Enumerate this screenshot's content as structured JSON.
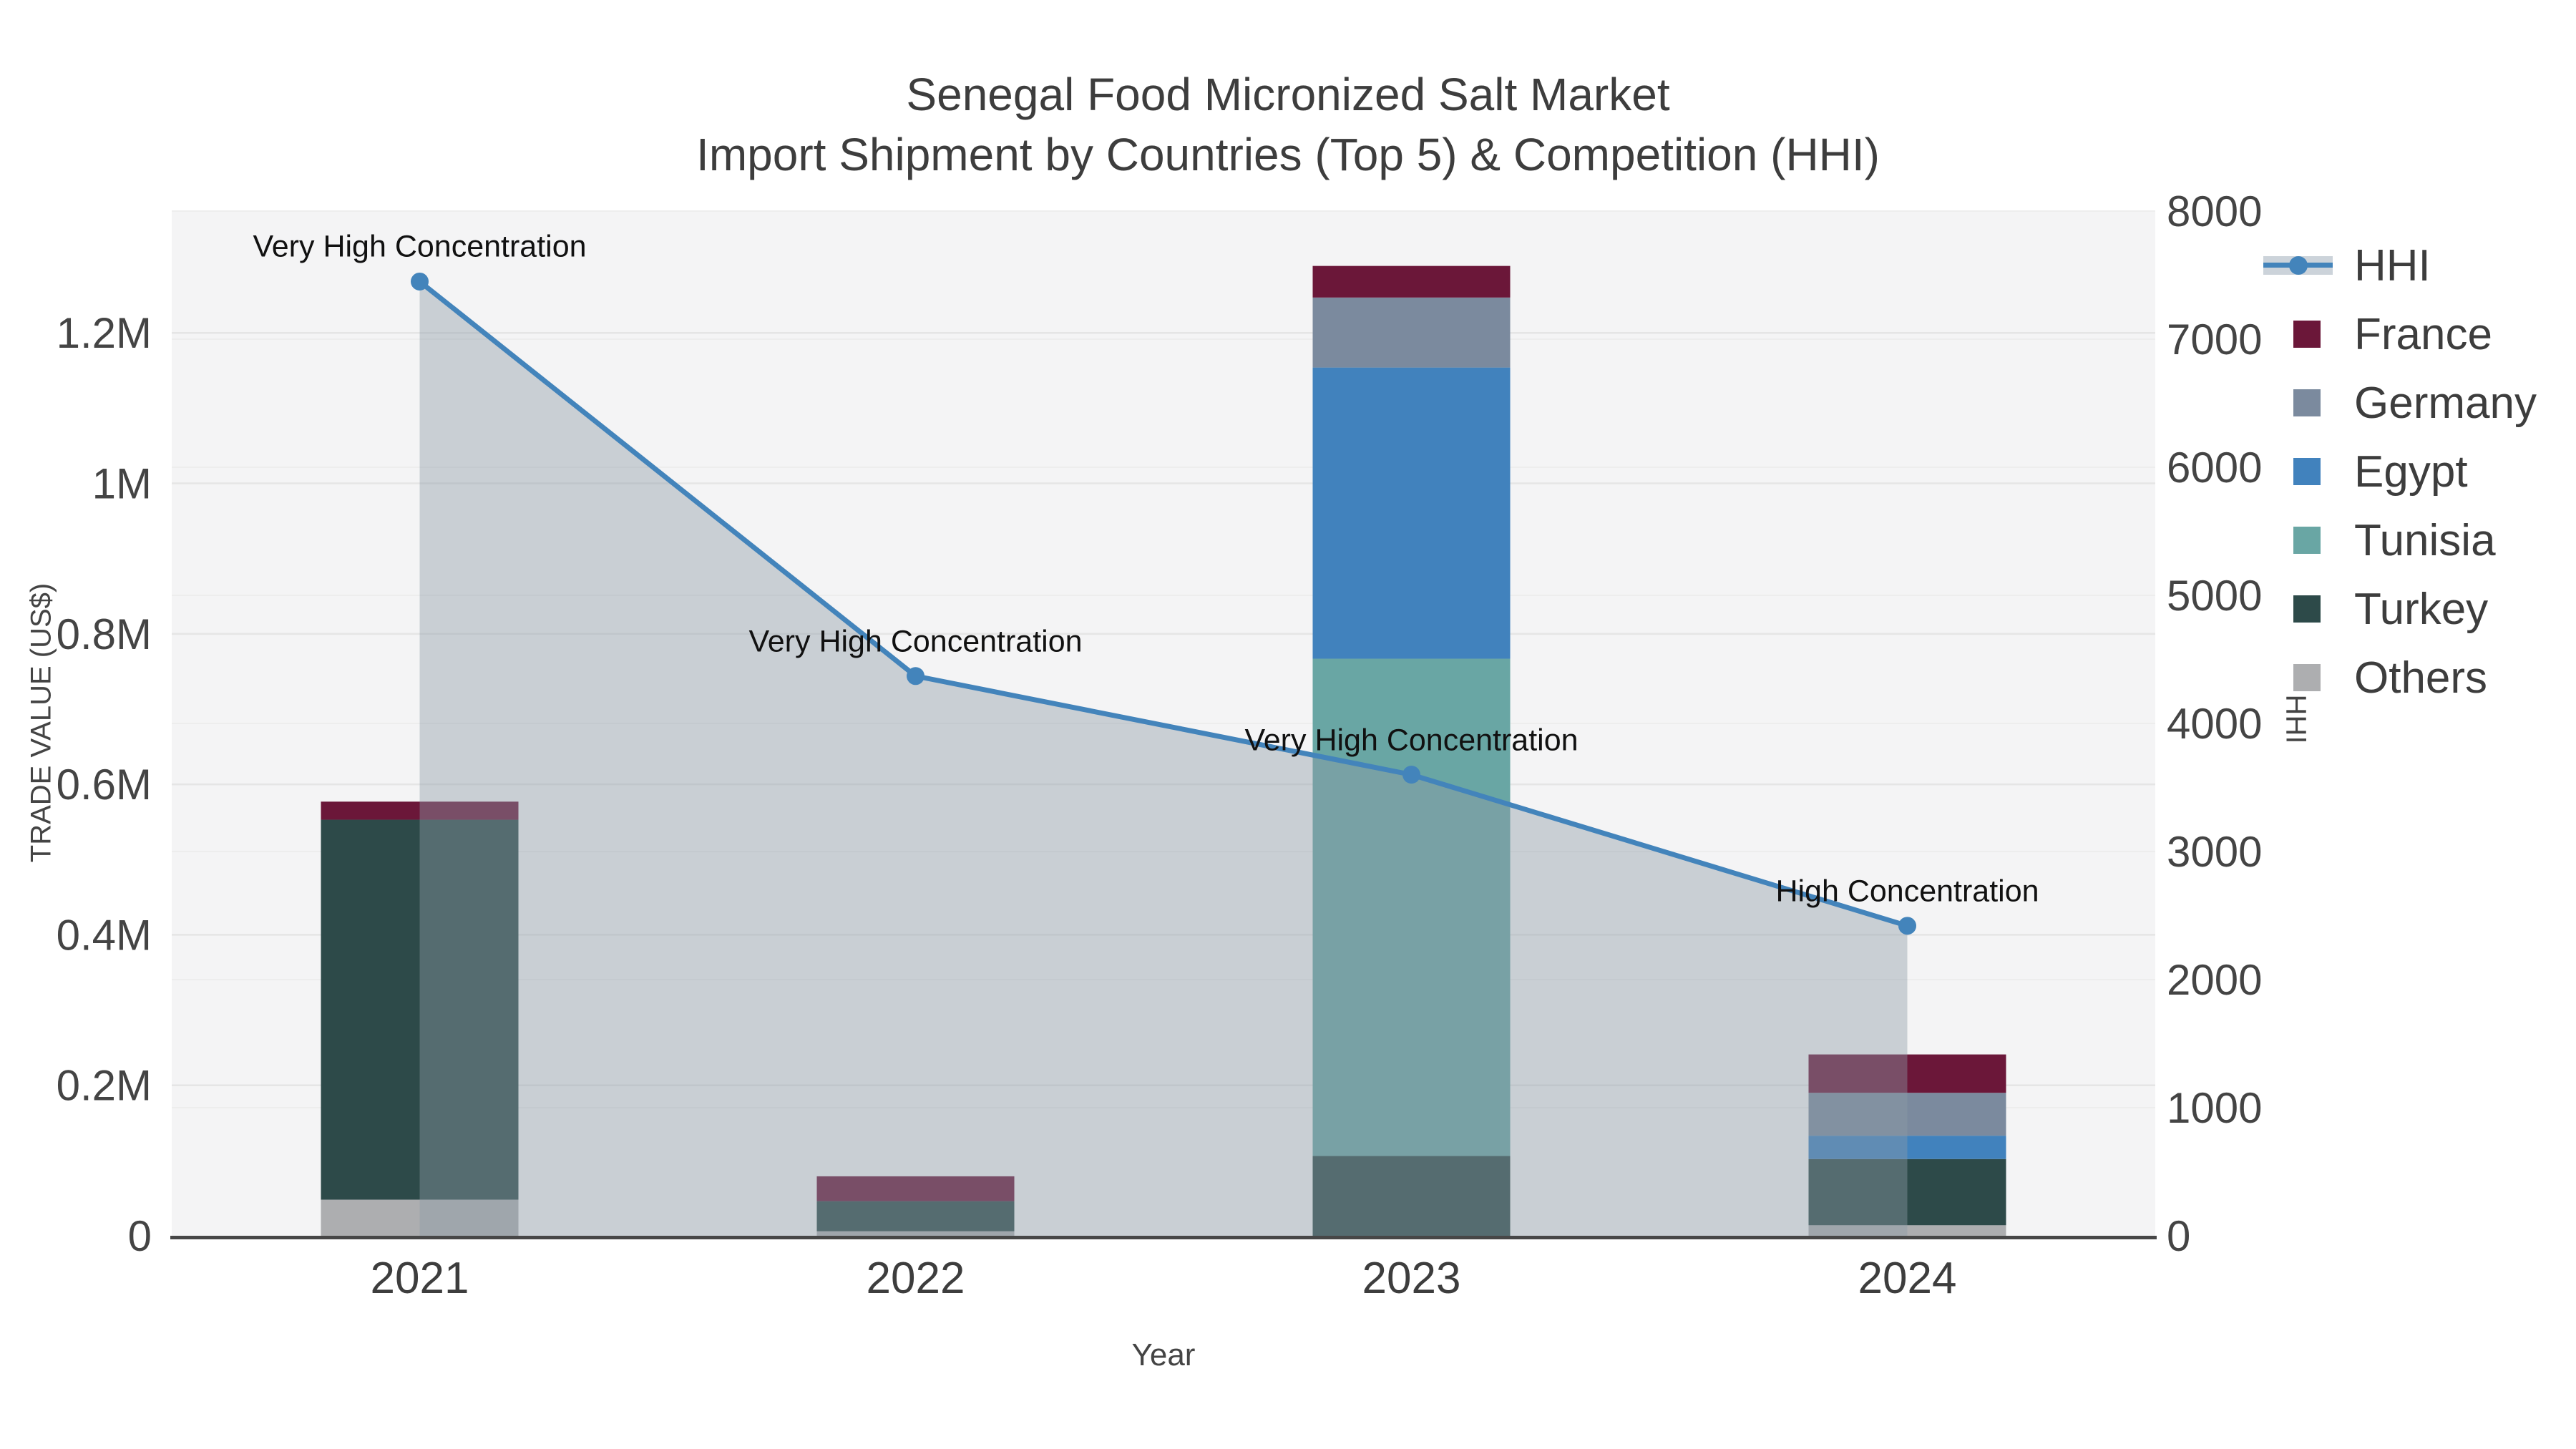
{
  "title": {
    "line1": "Senegal Food Micronized Salt Market",
    "line2": "Import Shipment by Countries (Top 5) & Competition (HHI)"
  },
  "chart_data": {
    "type": "bar+line",
    "subtype": "stacked bars (left axis) with HHI line and area fill to zero (right axis)",
    "categories": [
      "2021",
      "2022",
      "2023",
      "2024"
    ],
    "bar_unit": "US$",
    "series": [
      {
        "name": "France",
        "color": "#6b1739",
        "values": [
          24000,
          33000,
          42000,
          51000
        ]
      },
      {
        "name": "Germany",
        "color": "#7b8a9e",
        "values": [
          0,
          0,
          93000,
          57000
        ]
      },
      {
        "name": "Egypt",
        "color": "#4182bd",
        "values": [
          0,
          0,
          387000,
          31000
        ]
      },
      {
        "name": "Tunisia",
        "color": "#69a6a4",
        "values": [
          0,
          0,
          661000,
          0
        ]
      },
      {
        "name": "Turkey",
        "color": "#2d4a49",
        "values": [
          505000,
          40000,
          106000,
          88000
        ]
      },
      {
        "name": "Others",
        "color": "#adaeb0",
        "values": [
          48000,
          6000,
          0,
          14000
        ]
      }
    ],
    "stack_order_bottom_to_top": [
      "Others",
      "Turkey",
      "Tunisia",
      "Egypt",
      "Germany",
      "France"
    ],
    "line_series": {
      "name": "HHI",
      "color": "#4384bb",
      "area_fill": "rgba(141,154,168,0.42)",
      "values": [
        7450,
        4370,
        3600,
        2420
      ]
    },
    "annotations": [
      {
        "category": "2021",
        "text": "Very High Concentration"
      },
      {
        "category": "2022",
        "text": "Very High Concentration"
      },
      {
        "category": "2023",
        "text": "Very High Concentration"
      },
      {
        "category": "2024",
        "text": "High Concentration"
      }
    ],
    "left_axis": {
      "title": "TRADE VALUE (US$)",
      "tick_values": [
        0,
        200000,
        400000,
        600000,
        800000,
        1000000,
        1200000
      ],
      "tick_labels": [
        "0",
        "0.2M",
        "0.4M",
        "0.6M",
        "0.8M",
        "1M",
        "1.2M"
      ],
      "range": [
        0,
        1361900
      ]
    },
    "right_axis": {
      "title": "HHI",
      "tick_values": [
        0,
        1000,
        2000,
        3000,
        4000,
        5000,
        6000,
        7000,
        8000
      ],
      "tick_labels": [
        "0",
        "1000",
        "2000",
        "3000",
        "4000",
        "5000",
        "6000",
        "7000",
        "8000"
      ],
      "range": [
        0,
        8000
      ]
    },
    "x_axis": {
      "title": "Year"
    },
    "legend_order": [
      "HHI",
      "France",
      "Germany",
      "Egypt",
      "Tunisia",
      "Turkey",
      "Others"
    ],
    "grid": true,
    "legend_position": "outside-right-top",
    "plot_background": "#f4f4f5"
  }
}
